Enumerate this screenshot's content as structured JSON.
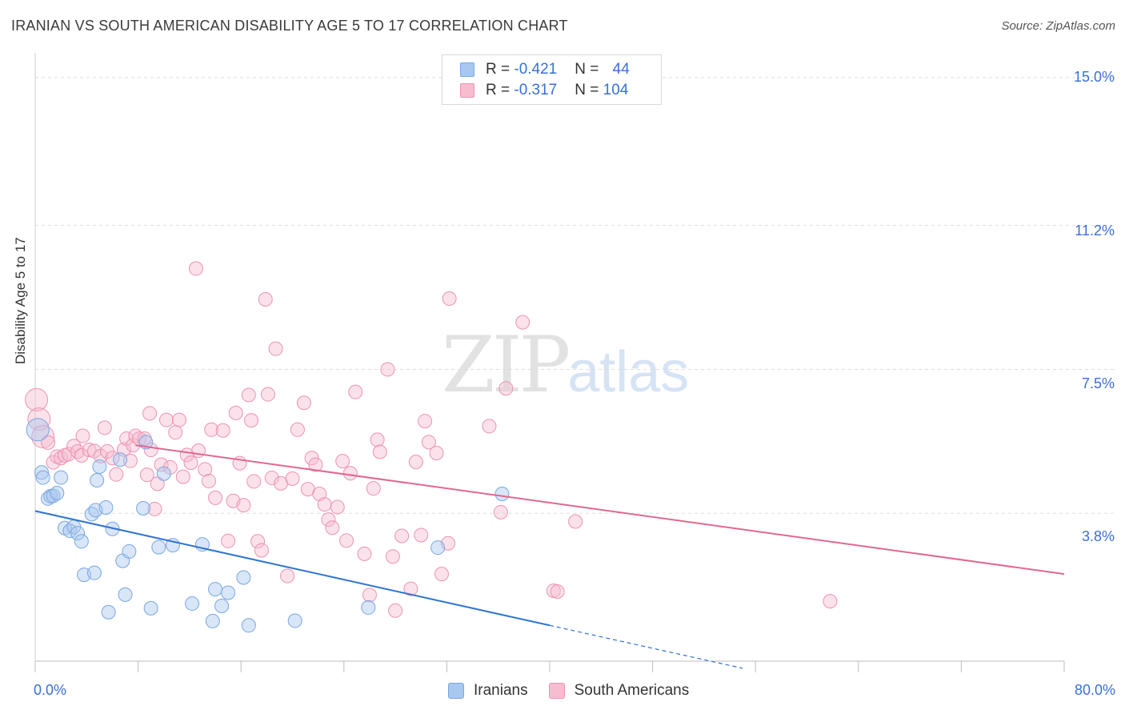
{
  "header": {
    "title": "IRANIAN VS SOUTH AMERICAN DISABILITY AGE 5 TO 17 CORRELATION CHART",
    "source": "Source: ZipAtlas.com"
  },
  "watermark": {
    "zip": "ZIP",
    "atlas": "atlas"
  },
  "legend": {
    "iranians": {
      "r_label": "R = ",
      "r_value": "-0.421",
      "n_label": "N = ",
      "n_value": "44"
    },
    "south_americans": {
      "r_label": "R = ",
      "r_value": "-0.317",
      "n_label": "N = ",
      "n_value": "104"
    }
  },
  "bottom_legend": {
    "iranians": "Iranians",
    "south_americans": "South Americans"
  },
  "colors": {
    "iranians_fill": "#a8c8f0",
    "iranians_stroke": "#7aa6e0",
    "iranians_line": "#2f72d0",
    "south_fill": "#f7bcd0",
    "south_stroke": "#ec93b2",
    "south_line": "#e0688f",
    "tick_label": "#3a6fd8",
    "grid": "#dddddd"
  },
  "chart_data": {
    "type": "scatter",
    "title": "IRANIAN VS SOUTH AMERICAN DISABILITY AGE 5 TO 17 CORRELATION CHART",
    "xlabel": "",
    "ylabel": "Disability Age 5 to 17",
    "xlim": [
      0,
      80
    ],
    "ylim": [
      0,
      15.8
    ],
    "x_tick_labels": [
      "0.0%",
      "80.0%"
    ],
    "y_ticks": [
      3.8,
      7.5,
      11.2,
      15.0
    ],
    "y_tick_labels": [
      "3.8%",
      "7.5%",
      "11.2%",
      "15.0%"
    ],
    "grid": true,
    "legend_position": "top-center",
    "series": [
      {
        "name": "Iranians",
        "r": -0.421,
        "n": 44,
        "trend": {
          "x0": 0,
          "y0": 3.86,
          "x1": 40,
          "y1": 0.92,
          "dashed_to_x": 55
        },
        "points": [
          [
            0.2,
            5.95
          ],
          [
            0.5,
            4.85
          ],
          [
            0.6,
            4.72
          ],
          [
            1.0,
            4.18
          ],
          [
            1.2,
            4.24
          ],
          [
            1.4,
            4.25
          ],
          [
            1.7,
            4.32
          ],
          [
            2.0,
            4.72
          ],
          [
            2.3,
            3.42
          ],
          [
            2.7,
            3.35
          ],
          [
            3.0,
            3.45
          ],
          [
            3.3,
            3.29
          ],
          [
            3.6,
            3.08
          ],
          [
            3.8,
            2.22
          ],
          [
            4.4,
            3.78
          ],
          [
            4.6,
            2.27
          ],
          [
            4.7,
            3.88
          ],
          [
            4.8,
            4.65
          ],
          [
            5.0,
            5.0
          ],
          [
            5.5,
            3.95
          ],
          [
            5.7,
            1.26
          ],
          [
            6.0,
            3.4
          ],
          [
            6.6,
            5.18
          ],
          [
            6.8,
            2.58
          ],
          [
            7.0,
            1.71
          ],
          [
            7.3,
            2.82
          ],
          [
            8.4,
            3.93
          ],
          [
            8.6,
            5.63
          ],
          [
            9.0,
            1.36
          ],
          [
            9.6,
            2.93
          ],
          [
            10.0,
            4.82
          ],
          [
            10.7,
            2.98
          ],
          [
            12.2,
            1.48
          ],
          [
            13.0,
            3.0
          ],
          [
            13.8,
            1.03
          ],
          [
            14.0,
            1.85
          ],
          [
            14.5,
            1.42
          ],
          [
            15.0,
            1.76
          ],
          [
            16.2,
            2.15
          ],
          [
            16.6,
            0.92
          ],
          [
            20.2,
            1.04
          ],
          [
            25.9,
            1.38
          ],
          [
            31.3,
            2.92
          ],
          [
            36.3,
            4.3
          ]
        ]
      },
      {
        "name": "South Americans",
        "r": -0.317,
        "n": 104,
        "trend": {
          "x0": 7.8,
          "y0": 5.55,
          "x1": 80,
          "y1": 2.24
        },
        "points": [
          [
            0.1,
            6.72
          ],
          [
            0.3,
            6.22
          ],
          [
            0.6,
            5.77
          ],
          [
            1.0,
            5.62
          ],
          [
            1.4,
            5.11
          ],
          [
            1.7,
            5.26
          ],
          [
            2.0,
            5.22
          ],
          [
            2.3,
            5.29
          ],
          [
            2.6,
            5.32
          ],
          [
            3.0,
            5.53
          ],
          [
            3.3,
            5.39
          ],
          [
            3.6,
            5.29
          ],
          [
            3.7,
            5.79
          ],
          [
            4.2,
            5.43
          ],
          [
            4.6,
            5.4
          ],
          [
            5.1,
            5.27
          ],
          [
            5.4,
            6.0
          ],
          [
            5.6,
            5.39
          ],
          [
            6.0,
            5.22
          ],
          [
            6.3,
            4.8
          ],
          [
            6.9,
            5.44
          ],
          [
            7.1,
            5.72
          ],
          [
            7.4,
            5.15
          ],
          [
            7.6,
            5.55
          ],
          [
            7.8,
            5.79
          ],
          [
            8.1,
            5.72
          ],
          [
            8.5,
            5.72
          ],
          [
            8.7,
            4.79
          ],
          [
            8.9,
            6.37
          ],
          [
            9.0,
            5.43
          ],
          [
            9.3,
            3.91
          ],
          [
            9.5,
            4.56
          ],
          [
            9.8,
            5.05
          ],
          [
            10.2,
            6.2
          ],
          [
            10.5,
            4.98
          ],
          [
            10.9,
            5.88
          ],
          [
            11.2,
            6.2
          ],
          [
            11.5,
            4.74
          ],
          [
            11.8,
            5.3
          ],
          [
            12.1,
            5.1
          ],
          [
            12.5,
            10.09
          ],
          [
            12.7,
            5.41
          ],
          [
            13.2,
            4.93
          ],
          [
            13.5,
            4.63
          ],
          [
            13.7,
            5.95
          ],
          [
            14.0,
            4.2
          ],
          [
            14.6,
            5.93
          ],
          [
            15.0,
            3.09
          ],
          [
            15.4,
            4.12
          ],
          [
            15.6,
            6.38
          ],
          [
            15.9,
            5.09
          ],
          [
            16.2,
            4.01
          ],
          [
            16.6,
            6.84
          ],
          [
            16.8,
            6.19
          ],
          [
            17.0,
            4.62
          ],
          [
            17.3,
            3.08
          ],
          [
            17.6,
            2.85
          ],
          [
            17.9,
            9.3
          ],
          [
            18.1,
            6.86
          ],
          [
            18.4,
            4.71
          ],
          [
            18.7,
            8.03
          ],
          [
            19.1,
            4.57
          ],
          [
            19.6,
            2.19
          ],
          [
            20.0,
            4.69
          ],
          [
            20.4,
            5.95
          ],
          [
            20.9,
            6.64
          ],
          [
            21.2,
            4.42
          ],
          [
            21.5,
            5.22
          ],
          [
            21.8,
            5.05
          ],
          [
            22.1,
            4.3
          ],
          [
            22.5,
            4.03
          ],
          [
            22.8,
            3.64
          ],
          [
            23.1,
            3.43
          ],
          [
            23.5,
            3.96
          ],
          [
            23.9,
            5.14
          ],
          [
            24.2,
            3.1
          ],
          [
            24.5,
            4.83
          ],
          [
            24.9,
            6.92
          ],
          [
            25.6,
            2.76
          ],
          [
            26.0,
            1.7
          ],
          [
            26.3,
            4.44
          ],
          [
            26.6,
            5.69
          ],
          [
            26.8,
            5.38
          ],
          [
            27.4,
            7.5
          ],
          [
            27.8,
            2.69
          ],
          [
            28.0,
            1.3
          ],
          [
            28.5,
            3.22
          ],
          [
            29.2,
            1.86
          ],
          [
            29.6,
            5.12
          ],
          [
            30.0,
            3.24
          ],
          [
            30.3,
            6.17
          ],
          [
            30.6,
            5.63
          ],
          [
            31.2,
            5.35
          ],
          [
            31.6,
            2.24
          ],
          [
            32.1,
            3.03
          ],
          [
            32.2,
            9.32
          ],
          [
            35.3,
            6.04
          ],
          [
            36.2,
            3.83
          ],
          [
            36.6,
            7.01
          ],
          [
            37.9,
            8.71
          ],
          [
            40.3,
            1.81
          ],
          [
            40.6,
            1.79
          ],
          [
            42.0,
            3.59
          ],
          [
            61.8,
            1.54
          ]
        ]
      }
    ]
  }
}
